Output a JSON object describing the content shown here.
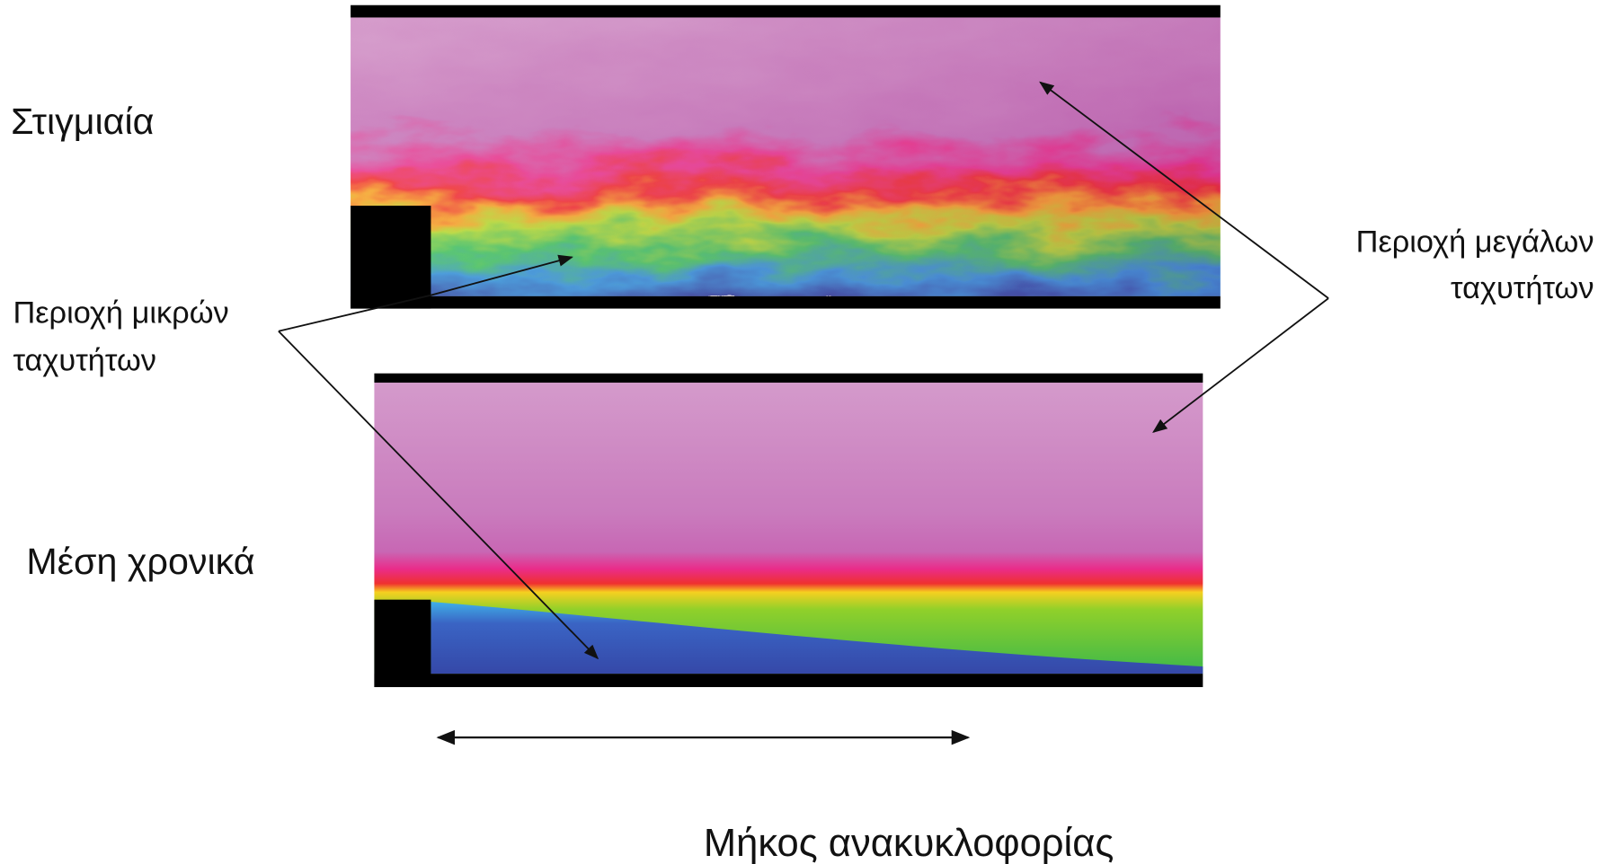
{
  "labels": {
    "instantaneous": "Στιγμιαία",
    "time_averaged": "Μέση χρονικά",
    "low_speed": [
      "Περιοχή μικρών",
      "ταχυτήτων"
    ],
    "high_speed": [
      "Περιοχή μεγάλων",
      "ταχυτήτων"
    ],
    "recirculation_length": "Μήκος ανακυκλοφορίας"
  }
}
